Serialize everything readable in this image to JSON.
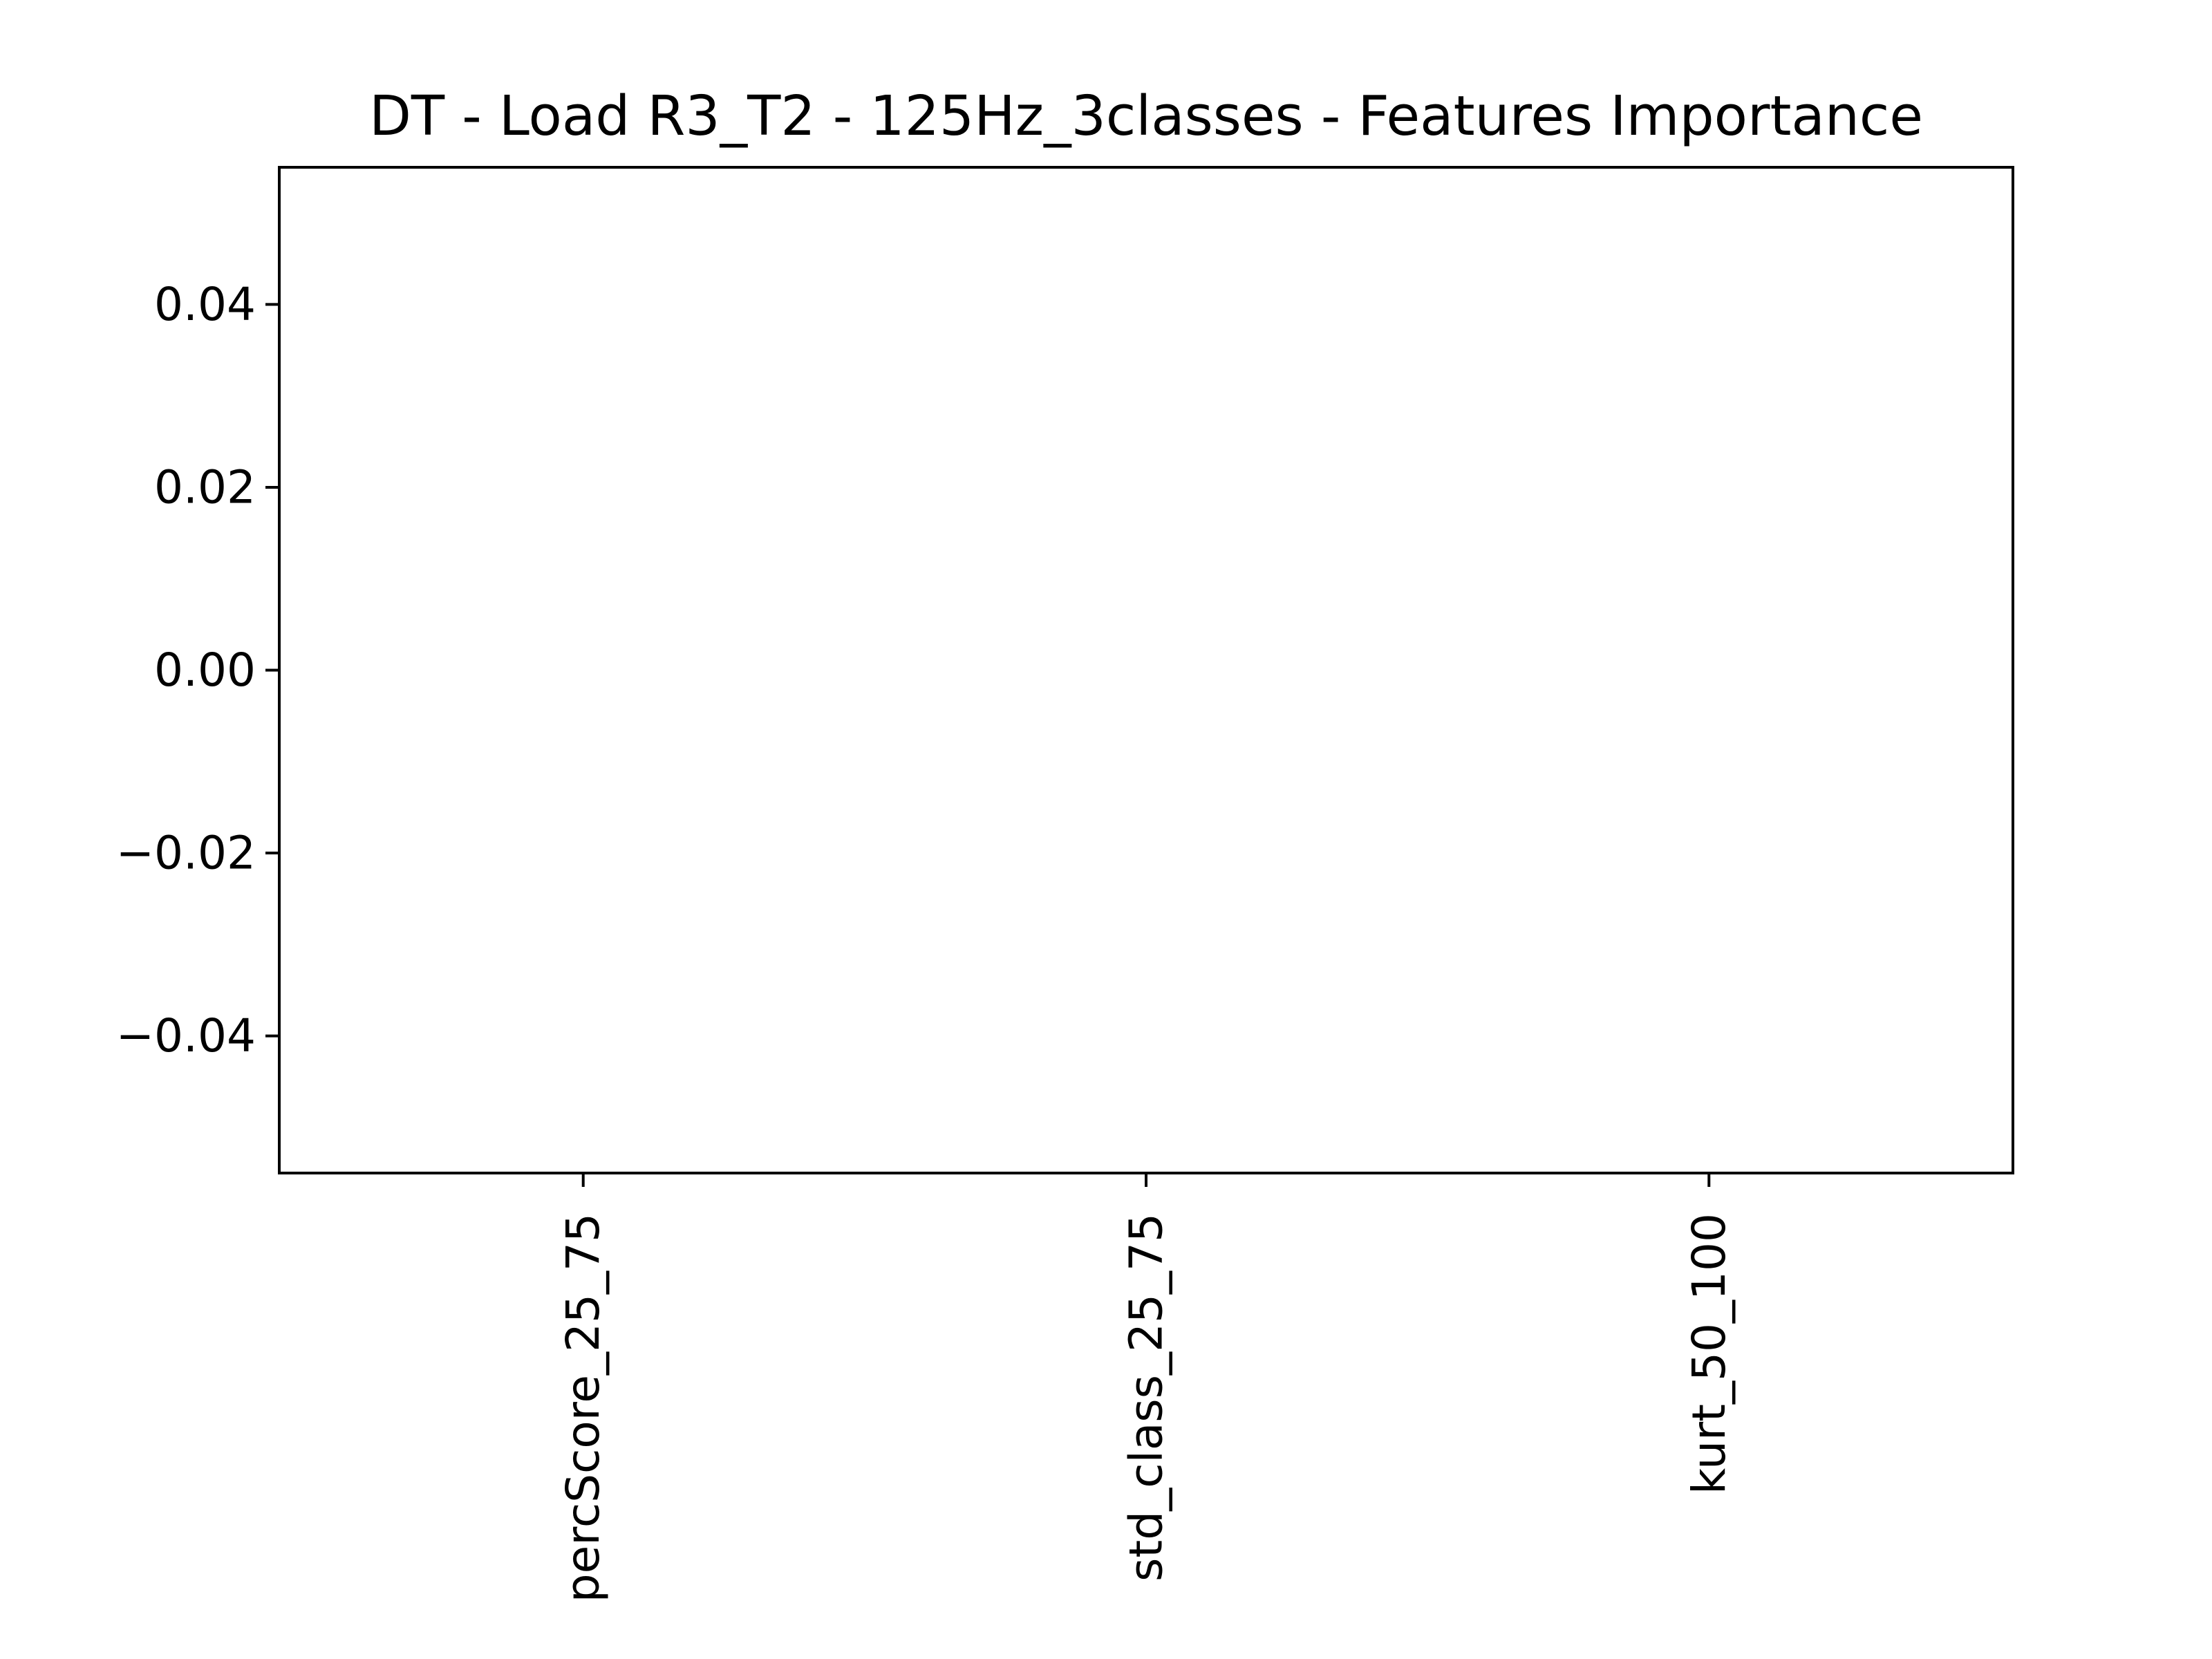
{
  "chart_data": {
    "type": "bar",
    "title": "DT - Load R3_T2 - 125Hz_3classes - Features Importance",
    "xlabel": "",
    "ylabel": "",
    "categories": [
      "percScore_25_75",
      "std_class_25_75",
      "kurt_50_100"
    ],
    "values": [
      0,
      0,
      0
    ],
    "ylim": [
      -0.055,
      0.055
    ],
    "yticks": [
      {
        "value": 0.04,
        "label": "0.04"
      },
      {
        "value": 0.02,
        "label": "0.02"
      },
      {
        "value": 0.0,
        "label": "0.00"
      },
      {
        "value": -0.02,
        "label": "−0.02"
      },
      {
        "value": -0.04,
        "label": "−0.04"
      }
    ],
    "grid": false,
    "legend": "none",
    "colors": {
      "bar": "#1f77b4",
      "axis": "#000000",
      "text": "#000000"
    }
  }
}
